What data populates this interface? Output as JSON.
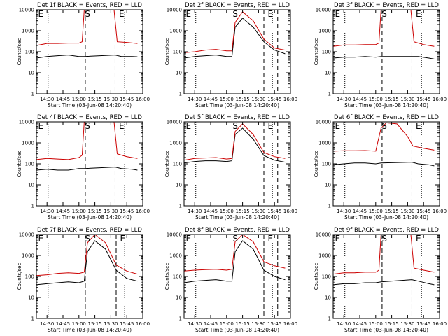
{
  "chart_data": [
    {
      "type": "line",
      "title": "Det 1f BLACK = Events, RED = LLD",
      "xlabel": "Start Time (03-Jun-08 14:20:40)",
      "ylabel": "Counts/sec",
      "x_ticks": [
        "14:30",
        "14:45",
        "15:00",
        "15:15",
        "15:30",
        "15:45",
        "16:00"
      ],
      "y_ticks": [
        "1",
        "10",
        "100",
        "1000",
        "10000"
      ],
      "ylim": [
        1,
        10000
      ],
      "yscale": "log",
      "markers": [
        {
          "label": "E",
          "time": "14:21"
        },
        {
          "label": "S",
          "time": "15:05"
        },
        {
          "label": "E",
          "time": "15:37"
        }
      ],
      "vlines": {
        "dotted": [
          "14:31",
          "15:43"
        ],
        "dashed": [
          "15:06",
          "15:34"
        ]
      },
      "series": [
        {
          "name": "Events",
          "color": "#000000",
          "x": [
            "14:20",
            "14:30",
            "14:40",
            "14:50",
            "15:00",
            "15:05",
            "15:34",
            "15:40",
            "15:50",
            "15:55"
          ],
          "values": [
            50,
            60,
            65,
            70,
            60,
            60,
            70,
            60,
            60,
            58
          ]
        },
        {
          "name": "LLD",
          "color": "#cc0000",
          "x": [
            "14:20",
            "14:30",
            "14:40",
            "14:50",
            "15:00",
            "15:03",
            "15:05",
            "15:33",
            "15:36",
            "15:45",
            "15:55"
          ],
          "values": [
            200,
            250,
            250,
            260,
            260,
            300,
            10000,
            10000,
            300,
            280,
            250
          ]
        }
      ]
    },
    {
      "type": "line",
      "title": "Det 2f BLACK = Events, RED = LLD",
      "xlabel": "Start Time (03-Jun-08 14:20:40)",
      "ylabel": "Counts/sec",
      "x_ticks": [
        "14:30",
        "14:45",
        "15:00",
        "15:15",
        "15:30",
        "15:45",
        "16:00"
      ],
      "y_ticks": [
        "1",
        "10",
        "100",
        "1000",
        "10000"
      ],
      "ylim": [
        1,
        10000
      ],
      "yscale": "log",
      "markers": [
        {
          "label": "E",
          "time": "14:21"
        },
        {
          "label": "S",
          "time": "15:05"
        },
        {
          "label": "E",
          "time": "15:38"
        }
      ],
      "vlines": {
        "dotted": [
          "14:31",
          "15:43"
        ],
        "dashed": [
          "15:35",
          "15:48"
        ]
      },
      "series": [
        {
          "name": "Events",
          "color": "#000000",
          "x": [
            "14:20",
            "14:30",
            "14:40",
            "14:50",
            "15:00",
            "15:05",
            "15:08",
            "15:15",
            "15:25",
            "15:35",
            "15:45",
            "15:55"
          ],
          "values": [
            50,
            60,
            65,
            70,
            60,
            60,
            1500,
            4000,
            1500,
            300,
            120,
            80
          ]
        },
        {
          "name": "LLD",
          "color": "#cc0000",
          "x": [
            "14:20",
            "14:30",
            "14:40",
            "14:50",
            "15:00",
            "15:05",
            "15:08",
            "15:15",
            "15:25",
            "15:35",
            "15:45",
            "15:55"
          ],
          "values": [
            90,
            100,
            120,
            130,
            110,
            110,
            2500,
            8000,
            3000,
            400,
            150,
            120
          ]
        }
      ]
    },
    {
      "type": "line",
      "title": "Det 3f BLACK = Events, RED = LLD",
      "xlabel": "Start Time (03-Jun-08 14:20:40)",
      "ylabel": "Counts/sec",
      "x_ticks": [
        "14:30",
        "14:45",
        "15:00",
        "15:15",
        "15:30",
        "15:45",
        "16:00"
      ],
      "y_ticks": [
        "1",
        "10",
        "100",
        "1000",
        "10000"
      ],
      "ylim": [
        1,
        10000
      ],
      "yscale": "log",
      "markers": [
        {
          "label": "E",
          "time": "14:21"
        },
        {
          "label": "S",
          "time": "15:05"
        },
        {
          "label": "E",
          "time": "15:37"
        }
      ],
      "vlines": {
        "dotted": [
          "14:31",
          "15:43"
        ],
        "dashed": [
          "15:06",
          "15:34"
        ]
      },
      "series": [
        {
          "name": "Events",
          "color": "#000000",
          "x": [
            "14:20",
            "14:30",
            "14:40",
            "14:50",
            "15:00",
            "15:05",
            "15:34",
            "15:40",
            "15:50",
            "15:55"
          ],
          "values": [
            50,
            55,
            55,
            60,
            55,
            60,
            60,
            60,
            50,
            45
          ]
        },
        {
          "name": "LLD",
          "color": "#cc0000",
          "x": [
            "14:20",
            "14:30",
            "14:40",
            "14:50",
            "15:00",
            "15:03",
            "15:05",
            "15:33",
            "15:36",
            "15:45",
            "15:55"
          ],
          "values": [
            180,
            210,
            210,
            220,
            220,
            260,
            10000,
            10000,
            300,
            220,
            180
          ]
        }
      ]
    },
    {
      "type": "line",
      "title": "Det 4f BLACK = Events, RED = LLD",
      "xlabel": "Start Time (03-Jun-08 14:20:40)",
      "ylabel": "Counts/sec",
      "x_ticks": [
        "14:30",
        "14:45",
        "15:00",
        "15:15",
        "15:30",
        "15:45",
        "16:00"
      ],
      "y_ticks": [
        "1",
        "10",
        "100",
        "1000",
        "10000"
      ],
      "ylim": [
        1,
        10000
      ],
      "yscale": "log",
      "markers": [
        {
          "label": "E",
          "time": "14:21"
        },
        {
          "label": "S",
          "time": "15:05"
        },
        {
          "label": "E",
          "time": "15:37"
        }
      ],
      "vlines": {
        "dotted": [
          "14:31",
          "15:43"
        ],
        "dashed": [
          "15:06",
          "15:34"
        ]
      },
      "series": [
        {
          "name": "Events",
          "color": "#000000",
          "x": [
            "14:20",
            "14:30",
            "14:40",
            "14:50",
            "15:00",
            "15:05",
            "15:34",
            "15:40",
            "15:50",
            "15:55"
          ],
          "values": [
            50,
            55,
            50,
            50,
            60,
            60,
            70,
            60,
            55,
            50
          ]
        },
        {
          "name": "LLD",
          "color": "#cc0000",
          "x": [
            "14:20",
            "14:30",
            "14:40",
            "14:50",
            "15:00",
            "15:03",
            "15:05",
            "15:33",
            "15:36",
            "15:45",
            "15:55"
          ],
          "values": [
            160,
            180,
            170,
            160,
            200,
            260,
            10000,
            10000,
            300,
            220,
            180
          ]
        }
      ]
    },
    {
      "type": "line",
      "title": "Det 5f BLACK = Events, RED = LLD",
      "xlabel": "Start Time (03-Jun-08 14:20:40)",
      "ylabel": "Counts/sec",
      "x_ticks": [
        "14:30",
        "14:45",
        "15:00",
        "15:15",
        "15:30",
        "15:45",
        "16:00"
      ],
      "y_ticks": [
        "1",
        "10",
        "100",
        "1000",
        "10000"
      ],
      "ylim": [
        1,
        10000
      ],
      "yscale": "log",
      "markers": [
        {
          "label": "E",
          "time": "14:21"
        },
        {
          "label": "S",
          "time": "15:05"
        },
        {
          "label": "E",
          "time": "15:38"
        }
      ],
      "vlines": {
        "dotted": [
          "14:31",
          "15:43"
        ],
        "dashed": [
          "15:35",
          "15:48"
        ]
      },
      "series": [
        {
          "name": "Events",
          "color": "#000000",
          "x": [
            "14:20",
            "14:30",
            "14:40",
            "14:50",
            "15:00",
            "15:05",
            "15:08",
            "15:15",
            "15:25",
            "15:35",
            "15:45",
            "15:55"
          ],
          "values": [
            110,
            130,
            140,
            140,
            130,
            140,
            2500,
            5000,
            1500,
            250,
            150,
            120
          ]
        },
        {
          "name": "LLD",
          "color": "#cc0000",
          "x": [
            "14:20",
            "14:30",
            "14:40",
            "14:50",
            "15:00",
            "15:05",
            "15:08",
            "15:15",
            "15:25",
            "15:35",
            "15:45",
            "15:55"
          ],
          "values": [
            150,
            180,
            190,
            200,
            170,
            180,
            3500,
            8000,
            2500,
            350,
            220,
            180
          ]
        }
      ]
    },
    {
      "type": "line",
      "title": "Det 6f BLACK = Events, RED = LLD",
      "xlabel": "Start Time (03-Jun-08 14:20:40)",
      "ylabel": "Counts/sec",
      "x_ticks": [
        "14:30",
        "14:45",
        "15:00",
        "15:15",
        "15:30",
        "15:45",
        "16:00"
      ],
      "y_ticks": [
        "1",
        "10",
        "100",
        "1000",
        "10000"
      ],
      "ylim": [
        1,
        10000
      ],
      "yscale": "log",
      "markers": [
        {
          "label": "E",
          "time": "14:21"
        },
        {
          "label": "S",
          "time": "15:05"
        },
        {
          "label": "E",
          "time": "15:37"
        }
      ],
      "vlines": {
        "dotted": [
          "14:31",
          "15:43"
        ],
        "dashed": [
          "15:06",
          "15:34"
        ]
      },
      "series": [
        {
          "name": "Events",
          "color": "#000000",
          "x": [
            "14:20",
            "14:30",
            "14:40",
            "14:50",
            "15:00",
            "15:05",
            "15:34",
            "15:40",
            "15:50",
            "15:55"
          ],
          "values": [
            90,
            100,
            110,
            110,
            100,
            110,
            120,
            100,
            90,
            80
          ]
        },
        {
          "name": "LLD",
          "color": "#cc0000",
          "x": [
            "14:20",
            "14:30",
            "14:40",
            "14:50",
            "15:00",
            "15:05",
            "15:10",
            "15:20",
            "15:30",
            "15:35",
            "15:45",
            "15:55"
          ],
          "values": [
            400,
            420,
            420,
            430,
            400,
            5000,
            9000,
            8000,
            2000,
            700,
            550,
            450
          ]
        }
      ]
    },
    {
      "type": "line",
      "title": "Det 7f BLACK = Events, RED = LLD",
      "xlabel": "Start Time (03-Jun-08 14:20:40)",
      "ylabel": "Counts/sec",
      "x_ticks": [
        "14:30",
        "14:45",
        "15:00",
        "15:15",
        "15:30",
        "15:45",
        "16:00"
      ],
      "y_ticks": [
        "1",
        "10",
        "100",
        "1000",
        "10000"
      ],
      "ylim": [
        1,
        10000
      ],
      "yscale": "log",
      "markers": [
        {
          "label": "E",
          "time": "14:21"
        },
        {
          "label": "S",
          "time": "15:05"
        },
        {
          "label": "E",
          "time": "15:38"
        }
      ],
      "vlines": {
        "dotted": [
          "14:31",
          "15:43"
        ],
        "dashed": [
          "15:06",
          "15:35"
        ]
      },
      "series": [
        {
          "name": "Events",
          "color": "#000000",
          "x": [
            "14:20",
            "14:30",
            "14:40",
            "14:50",
            "15:00",
            "15:05",
            "15:08",
            "15:15",
            "15:25",
            "15:35",
            "15:45",
            "15:55"
          ],
          "values": [
            40,
            45,
            50,
            55,
            50,
            60,
            1500,
            5000,
            2000,
            200,
            80,
            60
          ]
        },
        {
          "name": "LLD",
          "color": "#cc0000",
          "x": [
            "14:20",
            "14:30",
            "14:40",
            "14:50",
            "15:00",
            "15:05",
            "15:08",
            "15:15",
            "15:25",
            "15:35",
            "15:45",
            "15:55"
          ],
          "values": [
            110,
            120,
            140,
            150,
            140,
            160,
            4000,
            10000,
            4000,
            350,
            180,
            130
          ]
        }
      ]
    },
    {
      "type": "line",
      "title": "Det 8f BLACK = Events, RED = LLD",
      "xlabel": "Start Time (03-Jun-08 14:20:40)",
      "ylabel": "Counts/sec",
      "x_ticks": [
        "14:30",
        "14:45",
        "15:00",
        "15:15",
        "15:30",
        "15:45",
        "16:00"
      ],
      "y_ticks": [
        "1",
        "10",
        "100",
        "1000",
        "10000"
      ],
      "ylim": [
        1,
        10000
      ],
      "yscale": "log",
      "markers": [
        {
          "label": "E",
          "time": "14:21"
        },
        {
          "label": "S",
          "time": "15:05"
        },
        {
          "label": "E",
          "time": "15:38"
        }
      ],
      "vlines": {
        "dotted": [
          "14:31",
          "15:43"
        ],
        "dashed": [
          "15:35",
          "15:48"
        ]
      },
      "series": [
        {
          "name": "Events",
          "color": "#000000",
          "x": [
            "14:20",
            "14:30",
            "14:40",
            "14:50",
            "15:00",
            "15:05",
            "15:08",
            "15:15",
            "15:25",
            "15:35",
            "15:45",
            "15:55"
          ],
          "values": [
            50,
            60,
            65,
            70,
            60,
            60,
            1500,
            5000,
            2000,
            200,
            100,
            70
          ]
        },
        {
          "name": "LLD",
          "color": "#cc0000",
          "x": [
            "14:20",
            "14:30",
            "14:40",
            "14:50",
            "15:00",
            "15:05",
            "15:08",
            "15:15",
            "15:25",
            "15:35",
            "15:45",
            "15:55"
          ],
          "values": [
            180,
            200,
            210,
            220,
            200,
            220,
            4500,
            10000,
            4500,
            500,
            320,
            250
          ]
        }
      ]
    },
    {
      "type": "line",
      "title": "Det 9f BLACK = Events, RED = LLD",
      "xlabel": "Start Time (03-Jun-08 14:20:40)",
      "ylabel": "Counts/sec",
      "x_ticks": [
        "14:30",
        "14:45",
        "15:00",
        "15:15",
        "15:30",
        "15:45",
        "16:00"
      ],
      "y_ticks": [
        "1",
        "10",
        "100",
        "1000",
        "10000"
      ],
      "ylim": [
        1,
        10000
      ],
      "yscale": "log",
      "markers": [
        {
          "label": "E",
          "time": "14:21"
        },
        {
          "label": "S",
          "time": "15:05"
        },
        {
          "label": "E",
          "time": "15:37"
        }
      ],
      "vlines": {
        "dotted": [
          "14:31",
          "15:43"
        ],
        "dashed": [
          "15:06",
          "15:34"
        ]
      },
      "series": [
        {
          "name": "Events",
          "color": "#000000",
          "x": [
            "14:20",
            "14:30",
            "14:40",
            "14:50",
            "15:00",
            "15:05",
            "15:34",
            "15:40",
            "15:50",
            "15:55"
          ],
          "values": [
            40,
            45,
            45,
            50,
            50,
            55,
            70,
            60,
            45,
            40
          ]
        },
        {
          "name": "LLD",
          "color": "#cc0000",
          "x": [
            "14:20",
            "14:30",
            "14:40",
            "14:50",
            "15:00",
            "15:03",
            "15:05",
            "15:33",
            "15:36",
            "15:45",
            "15:55"
          ],
          "values": [
            130,
            150,
            150,
            160,
            160,
            200,
            10000,
            10000,
            250,
            200,
            160
          ]
        }
      ]
    }
  ]
}
